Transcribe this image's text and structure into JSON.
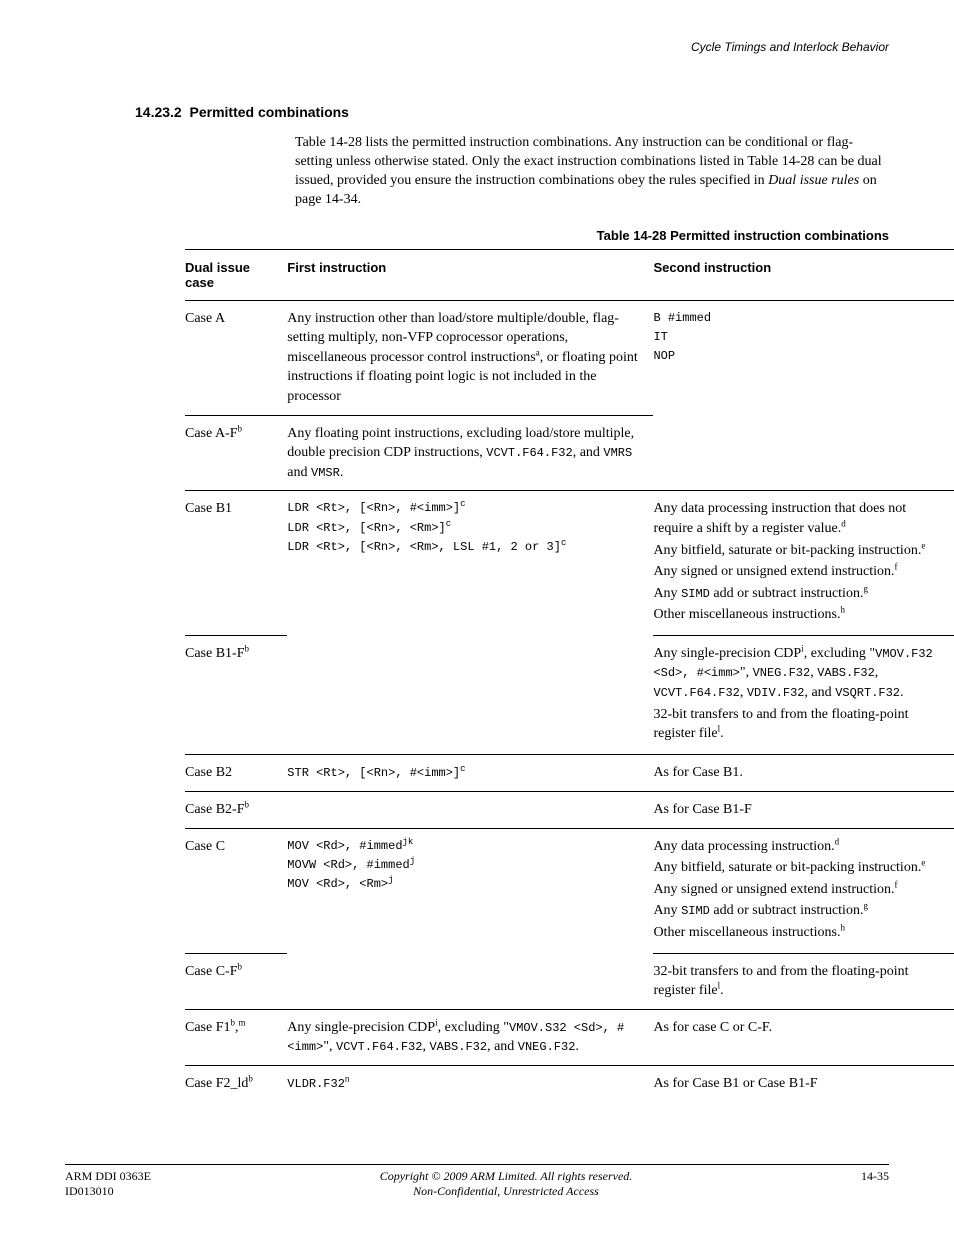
{
  "header": {
    "chapter_title": "Cycle Timings and Interlock Behavior"
  },
  "section": {
    "number": "14.23.2",
    "title": "Permitted combinations",
    "intro_p1a": "Table 14-28 lists the permitted instruction combinations. Any instruction can be conditional or flag-setting unless otherwise stated. Only the exact instruction combinations listed in Table 14-28 can be dual issued, provided you ensure the instruction combinations obey the rules specified in ",
    "intro_p1_italic": "Dual issue rules",
    "intro_p1b": " on page 14-34."
  },
  "table": {
    "caption": "Table 14-28 Permitted instruction combinations",
    "headers": {
      "case": "Dual issue case",
      "first": "First instruction",
      "second": "Second instruction"
    },
    "rows": {
      "A": {
        "case": "Case A",
        "first": "Any instruction other than load/store multiple/double, flag-setting multiply, non-VFP coprocessor operations, miscellaneous processor control instructions",
        "first_sup": "a",
        "first_tail": ", or floating point instructions if floating point logic is not included in the processor",
        "second_l1": "B #immed",
        "second_l2": "IT",
        "second_l3": "NOP"
      },
      "AF": {
        "case_pre": "Case A-F",
        "case_sup": "b",
        "first_a": "Any floating point instructions, excluding load/store multiple, double precision CDP instructions, ",
        "first_mono": "VCVT.F64.F32",
        "first_b": ", and ",
        "first_mono2": "VMRS",
        "first_c": " and ",
        "first_mono3": "VMSR",
        "first_d": "."
      },
      "B1": {
        "case": "Case B1",
        "first_l1": "LDR <Rt>, [<Rn>, #<imm>]",
        "first_l1_sup": "c",
        "first_l2": "LDR <Rt>, [<Rn>, <Rm>]",
        "first_l2_sup": "c",
        "first_l3": "LDR <Rt>, [<Rn>, <Rm>, LSL #1, 2 or 3]",
        "first_l3_sup": "c",
        "second_p1": "Any data processing instruction that does not require a shift by a register value.",
        "second_p1_sup": "d",
        "second_p2": "Any bitfield, saturate or bit-packing instruction.",
        "second_p2_sup": "e",
        "second_p3": "Any signed or unsigned extend instruction.",
        "second_p3_sup": "f",
        "second_p4a": "Any ",
        "second_p4_mono": "SIMD",
        "second_p4b": " add or subtract instruction.",
        "second_p4_sup": "g",
        "second_p5": "Other miscellaneous instructions.",
        "second_p5_sup": "h"
      },
      "B1F": {
        "case_pre": "Case B1-F",
        "case_sup": "b",
        "second_p1a": "Any single-precision CDP",
        "second_p1_sup": "i",
        "second_p1b": ", excluding \"",
        "second_p1_mono1": "VMOV.F32 <Sd>, #<imm>",
        "second_p1c": "\", ",
        "second_p1_mono2": "VNEG.F32",
        "second_p1d": ", ",
        "second_p1_mono3": "VABS.F32",
        "second_p1e": ", ",
        "second_p1_mono4": "VCVT.F64.F32",
        "second_p1f": ", ",
        "second_p1_mono5": "VDIV.F32",
        "second_p1g": ", and ",
        "second_p1_mono6": "VSQRT.F32",
        "second_p1h": ".",
        "second_p2a": "32-bit transfers to and from the floating-point register file",
        "second_p2_sup": "l",
        "second_p2b": "."
      },
      "B2": {
        "case": "Case B2",
        "first": "STR <Rt>, [<Rn>, #<imm>]",
        "first_sup": "c",
        "second": "As for Case B1."
      },
      "B2F": {
        "case_pre": "Case B2-F",
        "case_sup": "b",
        "second": "As for Case B1-F"
      },
      "C": {
        "case": "Case C",
        "first_l1": "MOV <Rd>, #immed",
        "first_l1_sup": "jk",
        "first_l2": "MOVW <Rd>, #immed",
        "first_l2_sup": "j",
        "first_l3": "MOV <Rd>, <Rm>",
        "first_l3_sup": "j",
        "second_p1": "Any data processing instruction.",
        "second_p1_sup": "d",
        "second_p2": "Any bitfield, saturate or bit-packing instruction.",
        "second_p2_sup": "e",
        "second_p3": "Any signed or unsigned extend instruction.",
        "second_p3_sup": "f",
        "second_p4a": "Any ",
        "second_p4_mono": "SIMD",
        "second_p4b": " add or subtract instruction.",
        "second_p4_sup": "g",
        "second_p5": "Other miscellaneous instructions.",
        "second_p5_sup": "h"
      },
      "CF": {
        "case_pre": "Case C-F",
        "case_sup": "b",
        "second_a": "32-bit transfers to and from the floating-point register file",
        "second_sup": "l",
        "second_b": "."
      },
      "F1": {
        "case_pre": "Case F1",
        "case_sup1": "b",
        "case_mid": ",",
        "case_sup2": "m",
        "first_a": "Any single-precision CDP",
        "first_sup": "i",
        "first_b": ", excluding \"",
        "first_mono1": "VMOV.S32 <Sd>, #<imm>",
        "first_c": "\", ",
        "first_mono2": "VCVT.F64.F32",
        "first_d": ", ",
        "first_mono3": "VABS.F32",
        "first_e": ", and ",
        "first_mono4": "VNEG.F32",
        "first_f": ".",
        "second": "As for case C or C-F."
      },
      "F2": {
        "case_pre": "Case F2_ld",
        "case_sup": "b",
        "first": "VLDR.F32",
        "first_sup": "n",
        "second": "As for Case B1 or Case B1-F"
      }
    }
  },
  "footer": {
    "left_l1": "ARM DDI 0363E",
    "left_l2": "ID013010",
    "center_l1": "Copyright © 2009 ARM Limited. All rights reserved.",
    "center_l2": "Non-Confidential, Unrestricted Access",
    "right": "14-35"
  }
}
